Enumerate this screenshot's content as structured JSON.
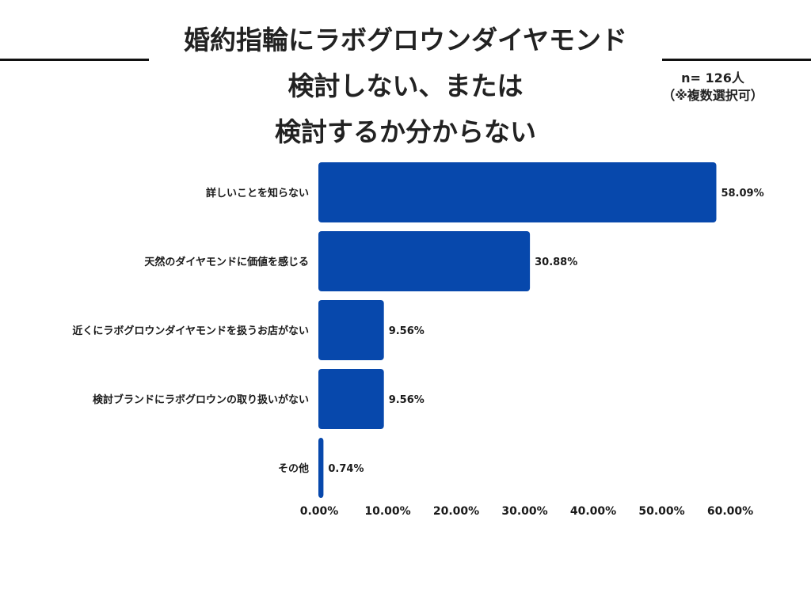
{
  "header": {
    "title_lines": [
      "婚約指輪にラボグロウンダイヤモンド",
      "検討しない、または",
      "検討するか分からない"
    ],
    "sample_size": "n= 126人",
    "note": "（※複数選択可）"
  },
  "colors": {
    "bar": "#0748AC",
    "text": "#1a1a1a",
    "rule": "#111111"
  },
  "chart_data": {
    "type": "bar",
    "orientation": "horizontal",
    "title": "婚約指輪にラボグロウンダイヤモンド 検討しない、または 検討するか分からない",
    "categories": [
      "詳しいことを知らない",
      "天然のダイヤモンドに価値を感じる",
      "近くにラボグロウンダイヤモンドを扱うお店がない",
      "検討ブランドにラボグロウンの取り扱いがない",
      "その他"
    ],
    "values": [
      58.09,
      30.88,
      9.56,
      9.56,
      0.74
    ],
    "value_labels": [
      "58.09%",
      "30.88%",
      "9.56%",
      "9.56%",
      "0.74%"
    ],
    "xlim": [
      0,
      60
    ],
    "xticks": [
      0,
      10,
      20,
      30,
      40,
      50,
      60
    ],
    "xtick_labels": [
      "0.00%",
      "10.00%",
      "20.00%",
      "30.00%",
      "40.00%",
      "50.00%",
      "60.00%"
    ],
    "xlabel": "",
    "ylabel": "",
    "grid": false,
    "legend": "none"
  }
}
